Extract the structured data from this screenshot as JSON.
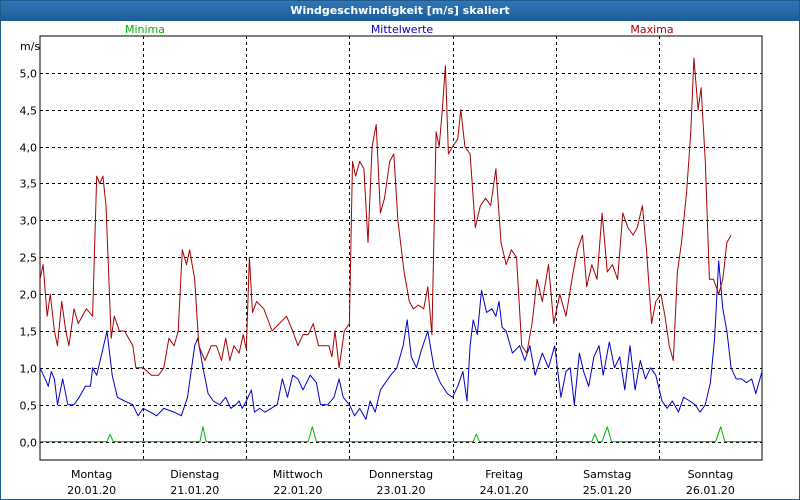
{
  "window": {
    "title": "Windgeschwindigkeit [m/s] skaliert"
  },
  "chart_data": {
    "type": "line",
    "ylabel": "m/s",
    "ylim": [
      -0.25,
      5.5
    ],
    "xlim": [
      0,
      7
    ],
    "y_ticks": [
      "0,0",
      "0,5",
      "1,0",
      "1,5",
      "2,0",
      "2,5",
      "3,0",
      "3,5",
      "4,0",
      "4,5",
      "5,0"
    ],
    "x_ticks": [
      {
        "day": "Montag",
        "date": "20.01.20"
      },
      {
        "day": "Dienstag",
        "date": "21.01.20"
      },
      {
        "day": "Mittwoch",
        "date": "22.01.20"
      },
      {
        "day": "Donnerstag",
        "date": "23.01.20"
      },
      {
        "day": "Freitag",
        "date": "24.01.20"
      },
      {
        "day": "Samstag",
        "date": "25.01.20"
      },
      {
        "day": "Sonntag",
        "date": "26.01.20"
      }
    ],
    "grid": true,
    "legend_placement": "top",
    "series": [
      {
        "name": "Minima",
        "color": "#00b000",
        "values": [
          [
            0.0,
            0.0
          ],
          [
            0.6,
            0.0
          ],
          [
            0.65,
            0.0
          ],
          [
            0.68,
            0.1
          ],
          [
            0.71,
            0.0
          ],
          [
            1.5,
            0.0
          ],
          [
            1.55,
            0.0
          ],
          [
            1.58,
            0.2
          ],
          [
            1.61,
            0.0
          ],
          [
            2.55,
            0.0
          ],
          [
            2.6,
            0.0
          ],
          [
            2.64,
            0.2
          ],
          [
            2.68,
            0.0
          ],
          [
            4.15,
            0.0
          ],
          [
            4.2,
            0.0
          ],
          [
            4.23,
            0.1
          ],
          [
            4.26,
            0.0
          ],
          [
            5.3,
            0.0
          ],
          [
            5.35,
            0.0
          ],
          [
            5.38,
            0.1
          ],
          [
            5.41,
            0.0
          ],
          [
            5.45,
            0.0
          ],
          [
            5.5,
            0.2
          ],
          [
            5.54,
            0.0
          ],
          [
            6.5,
            0.0
          ],
          [
            6.55,
            0.0
          ],
          [
            6.6,
            0.2
          ],
          [
            6.64,
            0.0
          ],
          [
            7.0,
            0.0
          ]
        ]
      },
      {
        "name": "Mittelwerte",
        "color": "#0000c8",
        "values": [
          [
            0.0,
            1.0
          ],
          [
            0.05,
            0.85
          ],
          [
            0.08,
            0.75
          ],
          [
            0.11,
            0.95
          ],
          [
            0.14,
            0.85
          ],
          [
            0.17,
            0.5
          ],
          [
            0.22,
            0.85
          ],
          [
            0.27,
            0.5
          ],
          [
            0.33,
            0.5
          ],
          [
            0.38,
            0.6
          ],
          [
            0.44,
            0.75
          ],
          [
            0.49,
            0.75
          ],
          [
            0.51,
            1.0
          ],
          [
            0.55,
            0.9
          ],
          [
            0.6,
            1.2
          ],
          [
            0.65,
            1.5
          ],
          [
            0.7,
            0.9
          ],
          [
            0.75,
            0.6
          ],
          [
            0.82,
            0.55
          ],
          [
            0.9,
            0.5
          ],
          [
            0.95,
            0.35
          ],
          [
            1.0,
            0.45
          ],
          [
            1.07,
            0.4
          ],
          [
            1.13,
            0.35
          ],
          [
            1.2,
            0.45
          ],
          [
            1.3,
            0.4
          ],
          [
            1.37,
            0.35
          ],
          [
            1.43,
            0.6
          ],
          [
            1.5,
            1.3
          ],
          [
            1.53,
            1.4
          ],
          [
            1.58,
            1.0
          ],
          [
            1.63,
            0.65
          ],
          [
            1.68,
            0.55
          ],
          [
            1.74,
            0.5
          ],
          [
            1.8,
            0.6
          ],
          [
            1.85,
            0.45
          ],
          [
            1.9,
            0.5
          ],
          [
            1.93,
            0.55
          ],
          [
            1.96,
            0.45
          ],
          [
            2.0,
            0.55
          ],
          [
            2.05,
            0.7
          ],
          [
            2.08,
            0.4
          ],
          [
            2.13,
            0.45
          ],
          [
            2.18,
            0.4
          ],
          [
            2.24,
            0.45
          ],
          [
            2.3,
            0.5
          ],
          [
            2.35,
            0.85
          ],
          [
            2.4,
            0.6
          ],
          [
            2.45,
            0.9
          ],
          [
            2.5,
            0.85
          ],
          [
            2.55,
            0.7
          ],
          [
            2.62,
            0.9
          ],
          [
            2.68,
            0.8
          ],
          [
            2.72,
            0.5
          ],
          [
            2.79,
            0.5
          ],
          [
            2.85,
            0.6
          ],
          [
            2.9,
            0.85
          ],
          [
            2.94,
            0.6
          ],
          [
            3.0,
            0.5
          ],
          [
            3.05,
            0.35
          ],
          [
            3.1,
            0.45
          ],
          [
            3.16,
            0.3
          ],
          [
            3.2,
            0.55
          ],
          [
            3.25,
            0.4
          ],
          [
            3.3,
            0.7
          ],
          [
            3.4,
            0.9
          ],
          [
            3.46,
            1.0
          ],
          [
            3.52,
            1.3
          ],
          [
            3.56,
            1.65
          ],
          [
            3.6,
            1.15
          ],
          [
            3.65,
            1.0
          ],
          [
            3.7,
            1.25
          ],
          [
            3.76,
            1.5
          ],
          [
            3.82,
            1.0
          ],
          [
            3.88,
            0.8
          ],
          [
            3.95,
            0.65
          ],
          [
            4.0,
            0.6
          ],
          [
            4.05,
            0.75
          ],
          [
            4.1,
            0.95
          ],
          [
            4.14,
            0.55
          ],
          [
            4.17,
            1.3
          ],
          [
            4.2,
            1.65
          ],
          [
            4.24,
            1.45
          ],
          [
            4.28,
            2.05
          ],
          [
            4.33,
            1.75
          ],
          [
            4.38,
            1.8
          ],
          [
            4.42,
            1.7
          ],
          [
            4.45,
            1.9
          ],
          [
            4.48,
            1.55
          ],
          [
            4.52,
            1.5
          ],
          [
            4.58,
            1.2
          ],
          [
            4.65,
            1.3
          ],
          [
            4.7,
            1.1
          ],
          [
            4.75,
            1.3
          ],
          [
            4.8,
            0.9
          ],
          [
            4.87,
            1.2
          ],
          [
            4.93,
            1.0
          ],
          [
            4.99,
            1.3
          ],
          [
            5.05,
            0.6
          ],
          [
            5.1,
            0.95
          ],
          [
            5.14,
            1.0
          ],
          [
            5.18,
            0.5
          ],
          [
            5.23,
            1.2
          ],
          [
            5.27,
            0.95
          ],
          [
            5.32,
            0.75
          ],
          [
            5.37,
            1.15
          ],
          [
            5.42,
            1.3
          ],
          [
            5.46,
            0.9
          ],
          [
            5.52,
            1.35
          ],
          [
            5.57,
            1.0
          ],
          [
            5.62,
            1.15
          ],
          [
            5.67,
            0.7
          ],
          [
            5.72,
            1.3
          ],
          [
            5.77,
            0.7
          ],
          [
            5.82,
            1.1
          ],
          [
            5.87,
            0.85
          ],
          [
            5.92,
            1.0
          ],
          [
            5.97,
            0.9
          ],
          [
            6.03,
            0.55
          ],
          [
            6.08,
            0.45
          ],
          [
            6.13,
            0.55
          ],
          [
            6.19,
            0.4
          ],
          [
            6.24,
            0.6
          ],
          [
            6.3,
            0.55
          ],
          [
            6.35,
            0.5
          ],
          [
            6.4,
            0.4
          ],
          [
            6.45,
            0.5
          ],
          [
            6.5,
            0.8
          ],
          [
            6.54,
            1.4
          ],
          [
            6.58,
            2.45
          ],
          [
            6.62,
            1.8
          ],
          [
            6.66,
            1.5
          ],
          [
            6.7,
            1.0
          ],
          [
            6.75,
            0.85
          ],
          [
            6.8,
            0.85
          ],
          [
            6.85,
            0.8
          ],
          [
            6.9,
            0.85
          ],
          [
            6.94,
            0.65
          ],
          [
            7.0,
            0.95
          ]
        ]
      },
      {
        "name": "Maxima",
        "color": "#aa0000",
        "values": [
          [
            0.0,
            2.2
          ],
          [
            0.03,
            2.4
          ],
          [
            0.07,
            1.7
          ],
          [
            0.1,
            2.0
          ],
          [
            0.14,
            1.5
          ],
          [
            0.17,
            1.3
          ],
          [
            0.21,
            1.9
          ],
          [
            0.25,
            1.5
          ],
          [
            0.28,
            1.3
          ],
          [
            0.33,
            1.8
          ],
          [
            0.37,
            1.6
          ],
          [
            0.41,
            1.7
          ],
          [
            0.45,
            1.8
          ],
          [
            0.51,
            1.7
          ],
          [
            0.55,
            3.6
          ],
          [
            0.58,
            3.5
          ],
          [
            0.61,
            3.6
          ],
          [
            0.64,
            3.2
          ],
          [
            0.69,
            1.4
          ],
          [
            0.72,
            1.7
          ],
          [
            0.77,
            1.5
          ],
          [
            0.82,
            1.5
          ],
          [
            0.9,
            1.3
          ],
          [
            0.93,
            1.0
          ],
          [
            1.0,
            1.0
          ],
          [
            1.08,
            0.9
          ],
          [
            1.15,
            0.9
          ],
          [
            1.2,
            1.0
          ],
          [
            1.25,
            1.4
          ],
          [
            1.3,
            1.3
          ],
          [
            1.34,
            1.5
          ],
          [
            1.38,
            2.6
          ],
          [
            1.42,
            2.4
          ],
          [
            1.45,
            2.6
          ],
          [
            1.5,
            2.2
          ],
          [
            1.54,
            1.3
          ],
          [
            1.6,
            1.1
          ],
          [
            1.66,
            1.3
          ],
          [
            1.71,
            1.3
          ],
          [
            1.76,
            1.1
          ],
          [
            1.8,
            1.4
          ],
          [
            1.84,
            1.1
          ],
          [
            1.88,
            1.3
          ],
          [
            1.93,
            1.2
          ],
          [
            1.97,
            1.45
          ],
          [
            2.0,
            1.25
          ],
          [
            2.03,
            2.5
          ],
          [
            2.06,
            1.75
          ],
          [
            2.1,
            1.9
          ],
          [
            2.17,
            1.8
          ],
          [
            2.25,
            1.5
          ],
          [
            2.32,
            1.6
          ],
          [
            2.39,
            1.7
          ],
          [
            2.45,
            1.5
          ],
          [
            2.5,
            1.3
          ],
          [
            2.55,
            1.45
          ],
          [
            2.6,
            1.45
          ],
          [
            2.65,
            1.6
          ],
          [
            2.7,
            1.3
          ],
          [
            2.8,
            1.3
          ],
          [
            2.83,
            1.15
          ],
          [
            2.86,
            1.5
          ],
          [
            2.9,
            1.0
          ],
          [
            2.95,
            1.5
          ],
          [
            3.0,
            1.6
          ],
          [
            3.03,
            3.8
          ],
          [
            3.06,
            3.6
          ],
          [
            3.1,
            3.8
          ],
          [
            3.14,
            3.7
          ],
          [
            3.18,
            2.7
          ],
          [
            3.22,
            4.0
          ],
          [
            3.26,
            4.3
          ],
          [
            3.3,
            3.1
          ],
          [
            3.34,
            3.3
          ],
          [
            3.39,
            3.8
          ],
          [
            3.43,
            3.9
          ],
          [
            3.47,
            3.0
          ],
          [
            3.53,
            2.3
          ],
          [
            3.58,
            1.9
          ],
          [
            3.62,
            1.8
          ],
          [
            3.67,
            1.85
          ],
          [
            3.72,
            1.8
          ],
          [
            3.76,
            2.1
          ],
          [
            3.8,
            1.45
          ],
          [
            3.84,
            4.2
          ],
          [
            3.87,
            4.0
          ],
          [
            3.9,
            4.5
          ],
          [
            3.93,
            5.1
          ],
          [
            3.96,
            3.9
          ],
          [
            4.0,
            4.0
          ],
          [
            4.05,
            4.1
          ],
          [
            4.08,
            4.5
          ],
          [
            4.12,
            4.0
          ],
          [
            4.17,
            3.9
          ],
          [
            4.22,
            2.9
          ],
          [
            4.27,
            3.2
          ],
          [
            4.32,
            3.3
          ],
          [
            4.37,
            3.2
          ],
          [
            4.42,
            3.7
          ],
          [
            4.47,
            2.7
          ],
          [
            4.52,
            2.4
          ],
          [
            4.57,
            2.6
          ],
          [
            4.62,
            2.5
          ],
          [
            4.67,
            1.3
          ],
          [
            4.72,
            1.2
          ],
          [
            4.77,
            1.6
          ],
          [
            4.82,
            2.2
          ],
          [
            4.87,
            1.9
          ],
          [
            4.93,
            2.4
          ],
          [
            4.98,
            1.6
          ],
          [
            5.04,
            2.0
          ],
          [
            5.1,
            1.7
          ],
          [
            5.17,
            2.3
          ],
          [
            5.21,
            2.6
          ],
          [
            5.26,
            2.8
          ],
          [
            5.3,
            2.1
          ],
          [
            5.35,
            2.4
          ],
          [
            5.4,
            2.2
          ],
          [
            5.45,
            3.1
          ],
          [
            5.5,
            2.3
          ],
          [
            5.55,
            2.4
          ],
          [
            5.6,
            2.2
          ],
          [
            5.65,
            3.1
          ],
          [
            5.7,
            2.9
          ],
          [
            5.75,
            2.8
          ],
          [
            5.79,
            2.9
          ],
          [
            5.84,
            3.2
          ],
          [
            5.88,
            2.6
          ],
          [
            5.93,
            1.6
          ],
          [
            5.97,
            1.9
          ],
          [
            6.02,
            2.0
          ],
          [
            6.06,
            1.7
          ],
          [
            6.1,
            1.3
          ],
          [
            6.14,
            1.1
          ],
          [
            6.18,
            2.3
          ],
          [
            6.22,
            2.7
          ],
          [
            6.27,
            3.4
          ],
          [
            6.31,
            4.2
          ],
          [
            6.34,
            5.2
          ],
          [
            6.38,
            4.5
          ],
          [
            6.41,
            4.8
          ],
          [
            6.45,
            3.8
          ],
          [
            6.49,
            2.2
          ],
          [
            6.53,
            2.2
          ],
          [
            6.58,
            2.0
          ],
          [
            6.62,
            2.2
          ],
          [
            6.66,
            2.7
          ],
          [
            6.7,
            2.8
          ]
        ]
      }
    ]
  }
}
